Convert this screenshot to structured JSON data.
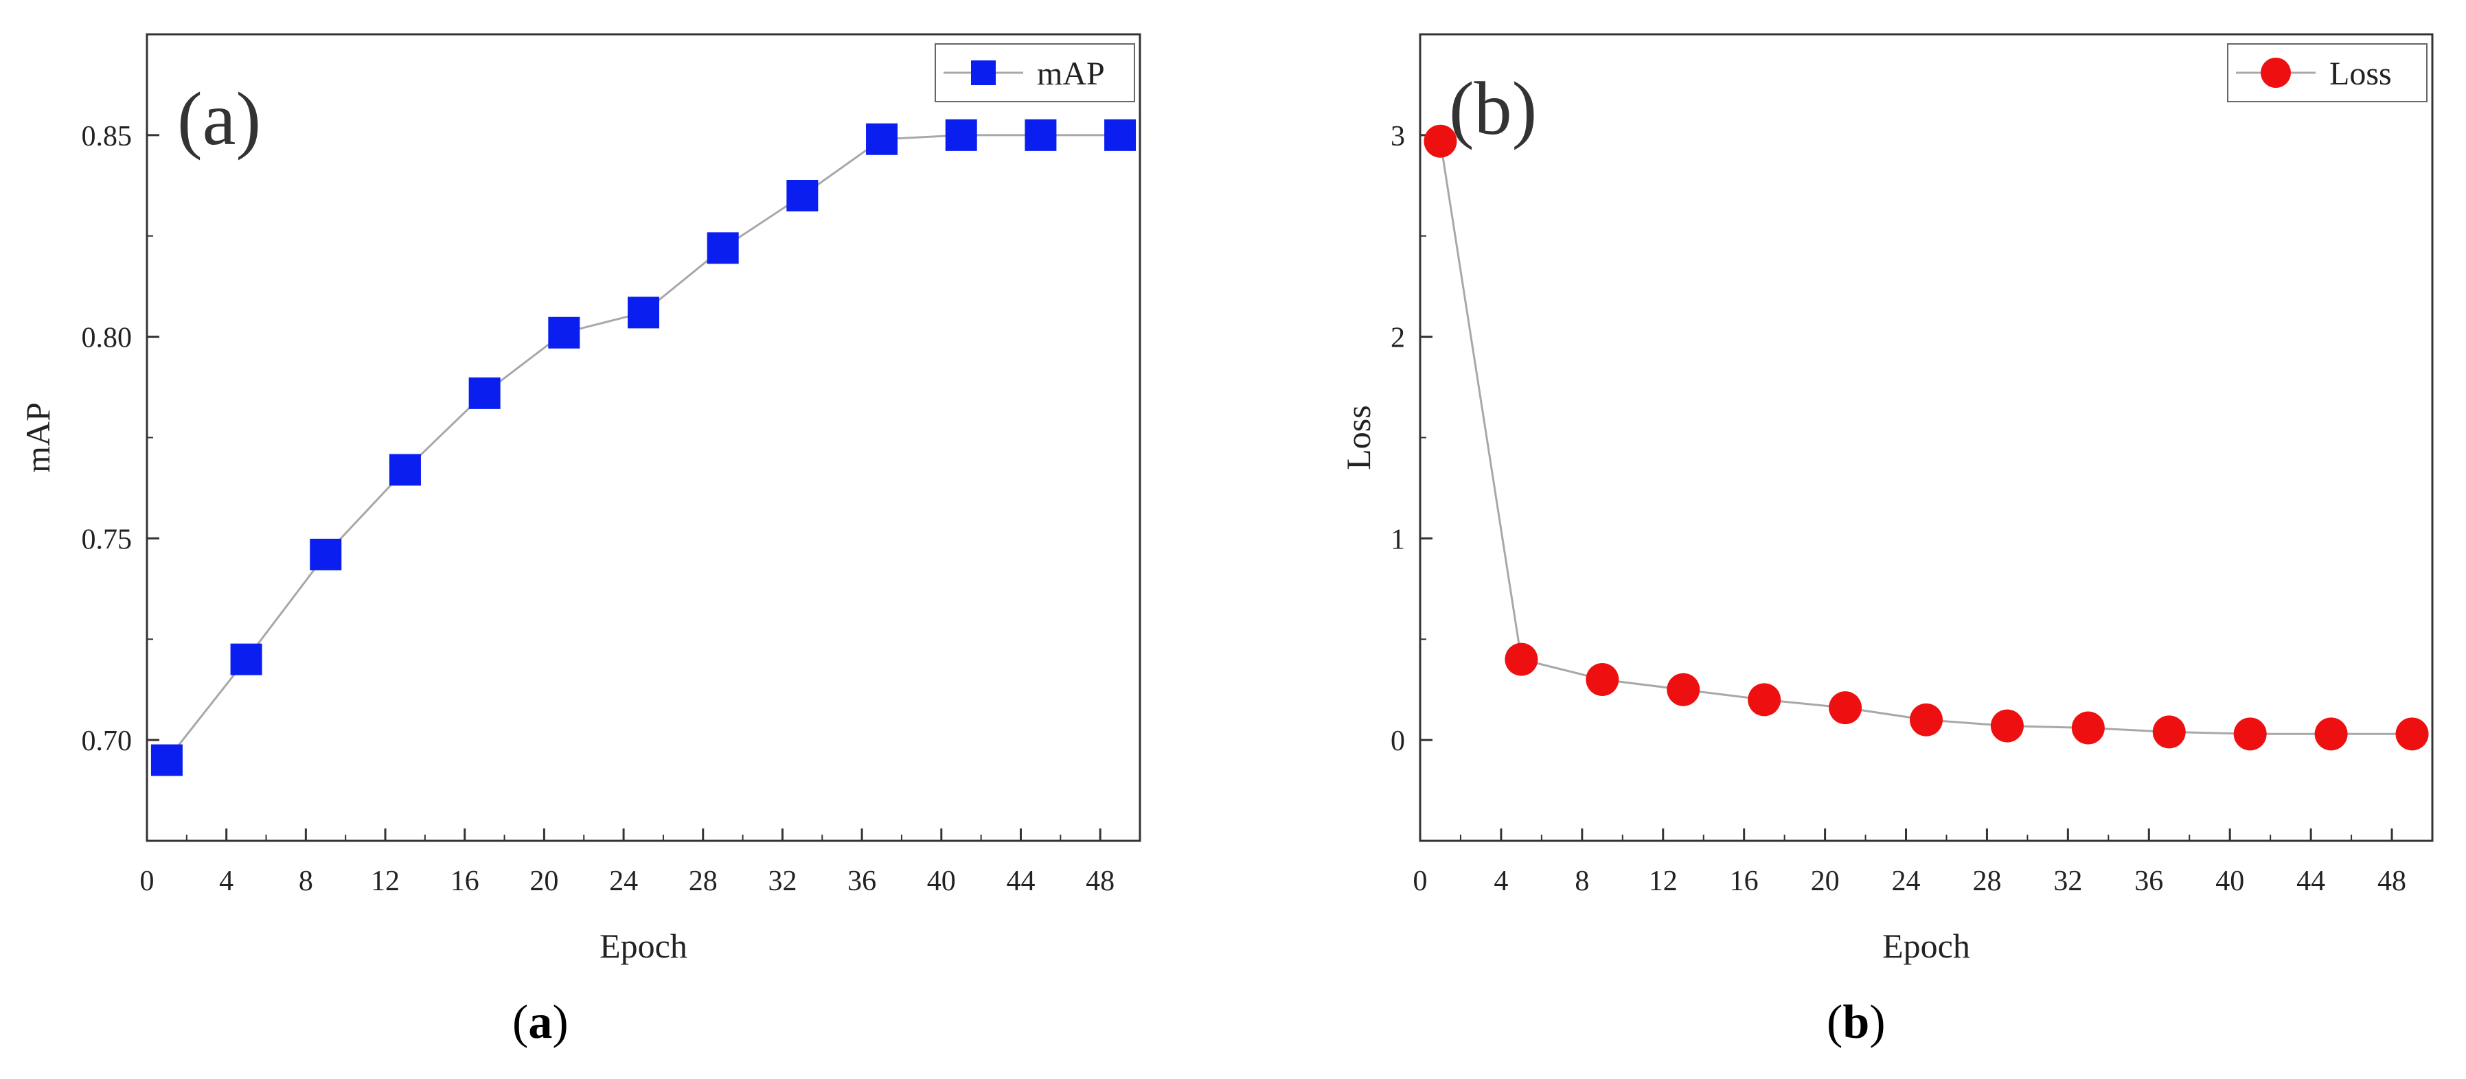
{
  "chart_data": [
    {
      "type": "line",
      "panel_letter": "(a)",
      "panel_caption": "a",
      "title": "",
      "xlabel": "Epoch",
      "ylabel": "mAP",
      "xlim": [
        0,
        50
      ],
      "ylim": [
        0.675,
        0.875
      ],
      "xticks": [
        0,
        4,
        8,
        12,
        16,
        20,
        24,
        28,
        32,
        36,
        40,
        44,
        48
      ],
      "yticks": [
        0.7,
        0.75,
        0.8,
        0.85
      ],
      "ytick_labels": [
        "0.70",
        "0.75",
        "0.80",
        "0.85"
      ],
      "legend": "top-right",
      "grid": false,
      "series": [
        {
          "name": "mAP",
          "marker": "square",
          "color": "#0a1ef0",
          "x": [
            1,
            5,
            9,
            13,
            17,
            21,
            25,
            29,
            33,
            37,
            41,
            45,
            49
          ],
          "values": [
            0.695,
            0.72,
            0.746,
            0.767,
            0.786,
            0.801,
            0.806,
            0.822,
            0.835,
            0.849,
            0.85,
            0.85,
            0.85
          ]
        }
      ]
    },
    {
      "type": "line",
      "panel_letter": "(b)",
      "panel_caption": "b",
      "title": "",
      "xlabel": "Epoch",
      "ylabel": "Loss",
      "xlim": [
        0,
        50
      ],
      "ylim": [
        -0.5,
        3.5
      ],
      "xticks": [
        0,
        4,
        8,
        12,
        16,
        20,
        24,
        28,
        32,
        36,
        40,
        44,
        48
      ],
      "yticks": [
        0,
        1,
        2,
        3
      ],
      "ytick_labels": [
        "0",
        "1",
        "2",
        "3"
      ],
      "legend": "top-right",
      "grid": false,
      "series": [
        {
          "name": "Loss",
          "marker": "circle",
          "color": "#ee1010",
          "x": [
            1,
            5,
            9,
            13,
            17,
            21,
            25,
            29,
            33,
            37,
            41,
            45,
            49
          ],
          "values": [
            2.97,
            0.4,
            0.3,
            0.25,
            0.2,
            0.16,
            0.1,
            0.07,
            0.06,
            0.04,
            0.03,
            0.03,
            0.03
          ]
        }
      ]
    }
  ]
}
